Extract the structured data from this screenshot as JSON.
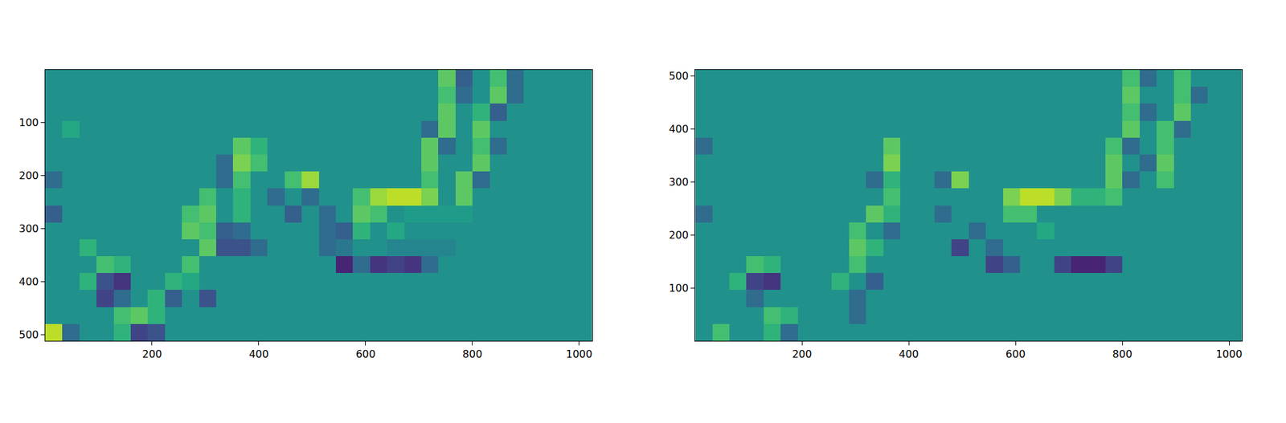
{
  "chart_data": [
    {
      "type": "heatmap",
      "color": "Viridis",
      "x": [
        16,
        48,
        80,
        112,
        144,
        176,
        208,
        240,
        272,
        304,
        336,
        368,
        400,
        432,
        464,
        496,
        528,
        560,
        592,
        624,
        656,
        688,
        720,
        752,
        784,
        816,
        848,
        880,
        912,
        944,
        976,
        1008
      ],
      "y": [
        16,
        48,
        80,
        112,
        144,
        176,
        208,
        240,
        272,
        304,
        336,
        368,
        400,
        432,
        464,
        496
      ],
      "z": [
        [
          0,
          0,
          0,
          0,
          0,
          0,
          0,
          0,
          0,
          0,
          0,
          0,
          0,
          0,
          0,
          0,
          0,
          0,
          0,
          0,
          0,
          0,
          0,
          0.5,
          -0.4,
          0,
          0.4,
          -0.3,
          0,
          0,
          0,
          0
        ],
        [
          0,
          0,
          0,
          0,
          0,
          0,
          0,
          0,
          0,
          0,
          0,
          0,
          0,
          0,
          0,
          0,
          0,
          0,
          0,
          0,
          0,
          0,
          0,
          0.4,
          -0.3,
          0,
          0.5,
          -0.3,
          0,
          0,
          0,
          0
        ],
        [
          0,
          0,
          0,
          0,
          0,
          0,
          0,
          0,
          0,
          0,
          0,
          0,
          0,
          0,
          0,
          0,
          0,
          0,
          0,
          0,
          0,
          0,
          0,
          0.5,
          0,
          0.3,
          -0.4,
          0,
          0,
          0,
          0,
          0
        ],
        [
          0,
          0.2,
          0,
          0,
          0,
          0,
          0,
          0,
          0,
          0,
          0,
          0,
          0,
          0,
          0,
          0,
          0,
          0,
          0,
          0,
          0,
          0,
          -0.3,
          0.5,
          0,
          0.5,
          0,
          0,
          0,
          0,
          0,
          0
        ],
        [
          0,
          0,
          0,
          0,
          0,
          0,
          0,
          0,
          0,
          0,
          0,
          0.5,
          0.3,
          0,
          0,
          0,
          0,
          0,
          0,
          0,
          0,
          0,
          0.5,
          -0.3,
          0,
          0.4,
          -0.3,
          0,
          0,
          0,
          0,
          0
        ],
        [
          0,
          0,
          0,
          0,
          0,
          0,
          0,
          0,
          0,
          0,
          -0.3,
          0.6,
          0.4,
          0,
          0,
          0,
          0,
          0,
          0,
          0,
          0,
          0,
          0.5,
          0,
          0,
          0.5,
          0,
          0,
          0,
          0,
          0,
          0
        ],
        [
          -0.3,
          0,
          0,
          0,
          0,
          0,
          0,
          0,
          0,
          0,
          -0.3,
          0.4,
          0,
          0,
          0.4,
          0.7,
          0,
          0,
          0,
          0,
          0,
          0,
          0.4,
          0,
          0.5,
          -0.3,
          0,
          0,
          0,
          0,
          0,
          0
        ],
        [
          0,
          0,
          0,
          0,
          0,
          0,
          0,
          0,
          0,
          0.4,
          0,
          0.3,
          0,
          -0.3,
          0,
          -0.3,
          0,
          0,
          0.4,
          0.7,
          0.8,
          0.8,
          0.6,
          0,
          0.5,
          0,
          0,
          0,
          0,
          0,
          0,
          0
        ],
        [
          -0.4,
          0,
          0,
          0,
          0,
          0,
          0,
          0,
          0.4,
          0.5,
          0,
          0.3,
          0,
          0,
          -0.4,
          0,
          -0.3,
          0,
          0.5,
          0.4,
          0,
          0.1,
          0.1,
          0.1,
          0.1,
          0,
          0,
          0,
          0,
          0,
          0,
          0
        ],
        [
          0,
          0,
          0,
          0,
          0,
          0,
          0,
          0,
          0.5,
          0.4,
          -0.4,
          -0.3,
          0,
          0,
          0,
          0,
          -0.3,
          -0.4,
          0.3,
          0,
          0.2,
          0,
          0,
          0,
          0,
          0,
          0,
          0,
          0,
          0,
          0,
          0
        ],
        [
          0,
          0,
          0.3,
          0,
          0,
          0,
          0,
          0,
          0,
          0.5,
          -0.5,
          -0.5,
          -0.3,
          0,
          0,
          0,
          -0.3,
          -0.2,
          0,
          0,
          -0.1,
          -0.1,
          -0.1,
          -0.1,
          0,
          0,
          0,
          0,
          0,
          0,
          0,
          0
        ],
        [
          0,
          0,
          0,
          0.4,
          0.3,
          0,
          0,
          0,
          0.4,
          0,
          0,
          0,
          0,
          0,
          0,
          0,
          0,
          -0.8,
          -0.3,
          -0.7,
          -0.6,
          -0.7,
          -0.3,
          0,
          0,
          0,
          0,
          0,
          0,
          0,
          0,
          0
        ],
        [
          0,
          0,
          0.3,
          -0.5,
          -0.7,
          0,
          0,
          0.3,
          0.2,
          0,
          0,
          0,
          0,
          0,
          0,
          0,
          0,
          0,
          0,
          0,
          0,
          0,
          0,
          0,
          0,
          0,
          0,
          0,
          0,
          0,
          0,
          0
        ],
        [
          0,
          0,
          0,
          -0.6,
          -0.3,
          0,
          0.3,
          -0.4,
          0,
          -0.5,
          0,
          0,
          0,
          0,
          0,
          0,
          0,
          0,
          0,
          0,
          0,
          0,
          0,
          0,
          0,
          0,
          0,
          0,
          0,
          0,
          0,
          0
        ],
        [
          0,
          0,
          0,
          0,
          0.4,
          0.5,
          0.3,
          0,
          0,
          0,
          0,
          0,
          0,
          0,
          0,
          0,
          0,
          0,
          0,
          0,
          0,
          0,
          0,
          0,
          0,
          0,
          0,
          0,
          0,
          0,
          0,
          0
        ],
        [
          0.8,
          -0.3,
          0,
          0,
          0.3,
          -0.6,
          -0.5,
          0,
          0,
          0,
          0,
          0,
          0,
          0,
          0,
          0,
          0,
          0,
          0,
          0,
          0,
          0,
          0,
          0,
          0,
          0,
          0,
          0,
          0,
          0,
          0,
          0
        ]
      ],
      "zlim": [
        -1,
        1
      ],
      "xlim": [
        0,
        1024
      ],
      "ylim": [
        512,
        0
      ],
      "xticks": [
        200,
        400,
        600,
        800,
        1000
      ],
      "yticks": [
        100,
        200,
        300,
        400,
        500
      ]
    },
    {
      "type": "heatmap",
      "color": "Viridis",
      "x": [
        16,
        48,
        80,
        112,
        144,
        176,
        208,
        240,
        272,
        304,
        336,
        368,
        400,
        432,
        464,
        496,
        528,
        560,
        592,
        624,
        656,
        688,
        720,
        752,
        784,
        816,
        848,
        880,
        912,
        944,
        976,
        1008
      ],
      "y": [
        16,
        48,
        80,
        112,
        144,
        176,
        208,
        240,
        272,
        304,
        336,
        368,
        400,
        432,
        464,
        496
      ],
      "z": [
        [
          0,
          0.4,
          0,
          0,
          0.3,
          -0.3,
          0,
          0,
          0,
          0,
          0,
          0,
          0,
          0,
          0,
          0,
          0,
          0,
          0,
          0,
          0,
          0,
          0,
          0,
          0,
          0,
          0,
          0,
          0,
          0,
          0,
          0
        ],
        [
          0,
          0,
          0,
          0,
          0.4,
          0.3,
          0,
          0,
          0,
          -0.3,
          0,
          0,
          0,
          0,
          0,
          0,
          0,
          0,
          0,
          0,
          0,
          0,
          0,
          0,
          0,
          0,
          0,
          0,
          0,
          0,
          0,
          0
        ],
        [
          0,
          0,
          0,
          -0.3,
          0,
          0,
          0,
          0,
          0,
          -0.3,
          0,
          0,
          0,
          0,
          0,
          0,
          0,
          0,
          0,
          0,
          0,
          0,
          0,
          0,
          0,
          0,
          0,
          0,
          0,
          0,
          0,
          0
        ],
        [
          0,
          0,
          0.3,
          -0.6,
          -0.7,
          0,
          0,
          0,
          0.3,
          0,
          -0.4,
          0,
          0,
          0,
          0,
          0,
          0,
          0,
          0,
          0,
          0,
          0,
          0,
          0,
          0,
          0,
          0,
          0,
          0,
          0,
          0,
          0
        ],
        [
          0,
          0,
          0,
          0.4,
          0.3,
          0,
          0,
          0,
          0,
          0.4,
          0,
          0,
          0,
          0,
          0,
          0,
          0,
          -0.6,
          -0.4,
          0,
          0,
          -0.6,
          -0.8,
          -0.8,
          -0.6,
          0,
          0,
          0,
          0,
          0,
          0,
          0
        ],
        [
          0,
          0,
          0,
          0,
          0,
          0,
          0,
          0,
          0,
          0.5,
          0.3,
          0,
          0,
          0,
          0,
          -0.6,
          0,
          -0.3,
          0,
          0,
          0,
          0,
          0,
          0,
          0,
          0,
          0,
          0,
          0,
          0,
          0,
          0
        ],
        [
          0,
          0,
          0,
          0,
          0,
          0,
          0,
          0,
          0,
          0.4,
          0,
          -0.3,
          0,
          0,
          0,
          0,
          -0.3,
          0,
          0,
          0,
          0.2,
          0,
          0,
          0,
          0,
          0,
          0,
          0,
          0,
          0,
          0,
          0
        ],
        [
          -0.3,
          0,
          0,
          0,
          0,
          0,
          0,
          0,
          0,
          0,
          0.5,
          0.3,
          0,
          0,
          -0.3,
          0,
          0,
          0,
          0.4,
          0.4,
          0,
          0,
          0,
          0,
          0,
          0,
          0,
          0,
          0,
          0,
          0,
          0
        ],
        [
          0,
          0,
          0,
          0,
          0,
          0,
          0,
          0,
          0,
          0,
          0,
          0.4,
          0,
          0,
          0,
          0,
          0,
          0,
          0.6,
          0.8,
          0.8,
          0.6,
          0.3,
          0.3,
          0.4,
          0,
          0,
          0,
          0,
          0,
          0,
          0
        ],
        [
          0,
          0,
          0,
          0,
          0,
          0,
          0,
          0,
          0,
          0,
          -0.3,
          0.3,
          0,
          0,
          -0.3,
          0.6,
          0,
          0,
          0,
          0,
          0,
          0,
          0,
          0,
          0.5,
          -0.3,
          0,
          0.4,
          0,
          0,
          0,
          0
        ],
        [
          0,
          0,
          0,
          0,
          0,
          0,
          0,
          0,
          0,
          0,
          0,
          0.6,
          0,
          0,
          0,
          0,
          0,
          0,
          0,
          0,
          0,
          0,
          0,
          0,
          0.5,
          0,
          -0.3,
          0.5,
          0,
          0,
          0,
          0
        ],
        [
          -0.3,
          0,
          0,
          0,
          0,
          0,
          0,
          0,
          0,
          0,
          0,
          0.5,
          0,
          0,
          0,
          0,
          0,
          0,
          0,
          0,
          0,
          0,
          0,
          0,
          0.4,
          -0.3,
          0,
          0.4,
          0,
          0,
          0,
          0
        ],
        [
          0,
          0,
          0,
          0,
          0,
          0,
          0,
          0,
          0,
          0,
          0,
          0,
          0,
          0,
          0,
          0,
          0,
          0,
          0,
          0,
          0,
          0,
          0,
          0,
          0,
          0.5,
          0,
          0.4,
          -0.3,
          0,
          0,
          0
        ],
        [
          0,
          0,
          0,
          0,
          0,
          0,
          0,
          0,
          0,
          0,
          0,
          0,
          0,
          0,
          0,
          0,
          0,
          0,
          0,
          0,
          0,
          0,
          0,
          0,
          0,
          0.4,
          -0.3,
          0,
          0.5,
          0,
          0,
          0
        ],
        [
          0,
          0,
          0,
          0,
          0,
          0,
          0,
          0,
          0,
          0,
          0,
          0,
          0,
          0,
          0,
          0,
          0,
          0,
          0,
          0,
          0,
          0,
          0,
          0,
          0,
          0.5,
          0,
          0,
          0.4,
          -0.3,
          0,
          0
        ],
        [
          0,
          0,
          0,
          0,
          0,
          0,
          0,
          0,
          0,
          0,
          0,
          0,
          0,
          0,
          0,
          0,
          0,
          0,
          0,
          0,
          0,
          0,
          0,
          0,
          0,
          0.4,
          -0.3,
          0,
          0.4,
          0,
          0,
          0
        ]
      ],
      "zlim": [
        -1,
        1
      ],
      "xlim": [
        0,
        1024
      ],
      "ylim": [
        0,
        512
      ],
      "xticks": [
        200,
        400,
        600,
        800,
        1000
      ],
      "yticks": [
        100,
        200,
        300,
        400,
        500
      ]
    }
  ]
}
